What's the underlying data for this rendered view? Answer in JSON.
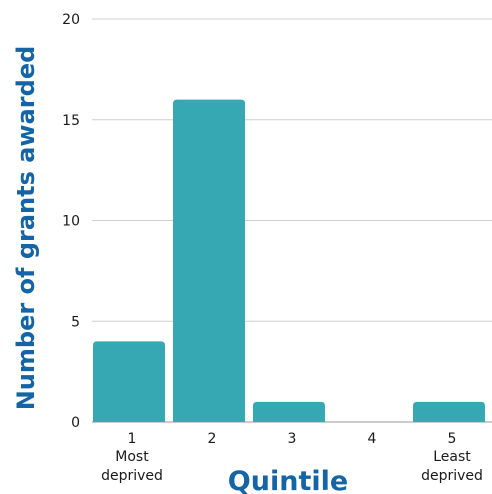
{
  "chart_data": {
    "type": "bar",
    "categories": [
      "1",
      "2",
      "3",
      "4",
      "5"
    ],
    "category_sublabels": [
      "Most\ndeprived",
      "",
      "",
      "",
      "Least\ndeprived"
    ],
    "values": [
      4,
      16,
      1,
      0,
      1
    ],
    "xlabel": "Quintile",
    "ylabel": "Number of grants awarded",
    "ylim": [
      0,
      20
    ],
    "yticks": [
      0,
      5,
      10,
      15,
      20
    ],
    "grid": true,
    "legend": "none",
    "bar_color": "#35a8b4",
    "title_color": "#1565a6"
  }
}
